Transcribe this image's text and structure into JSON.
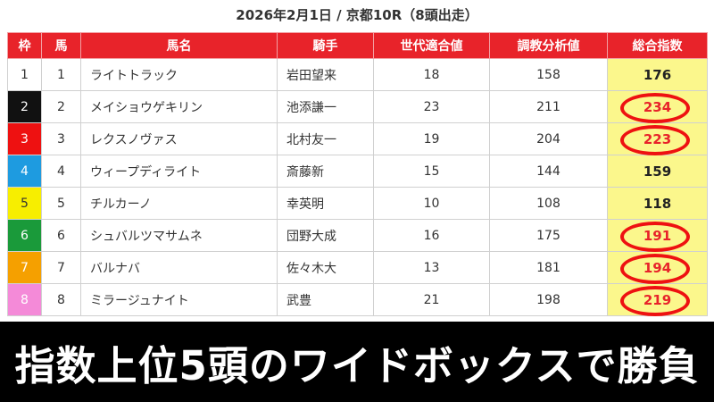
{
  "title": "2026年2月1日 / 京都10R（8頭出走）",
  "headers": [
    "枠",
    "馬",
    "馬名",
    "騎手",
    "世代適合値",
    "調教分析値",
    "総合指数"
  ],
  "rows": [
    {
      "waku": "1",
      "uma": "1",
      "name": "ライトトラック",
      "jockey": "岩田望来",
      "gen": "18",
      "train": "158",
      "score": "176",
      "circled": false,
      "waku_bg": "#ffffff",
      "waku_fg": "#333333"
    },
    {
      "waku": "2",
      "uma": "2",
      "name": "メイショウゲキリン",
      "jockey": "池添謙一",
      "gen": "23",
      "train": "211",
      "score": "234",
      "circled": true,
      "waku_bg": "#111111",
      "waku_fg": "#ffffff"
    },
    {
      "waku": "3",
      "uma": "3",
      "name": "レクスノヴァス",
      "jockey": "北村友一",
      "gen": "19",
      "train": "204",
      "score": "223",
      "circled": true,
      "waku_bg": "#ee1111",
      "waku_fg": "#ffffff"
    },
    {
      "waku": "4",
      "uma": "4",
      "name": "ウィープディライト",
      "jockey": "斎藤新",
      "gen": "15",
      "train": "144",
      "score": "159",
      "circled": false,
      "waku_bg": "#1e9be0",
      "waku_fg": "#ffffff"
    },
    {
      "waku": "5",
      "uma": "5",
      "name": "チルカーノ",
      "jockey": "幸英明",
      "gen": "10",
      "train": "108",
      "score": "118",
      "circled": false,
      "waku_bg": "#f7ee00",
      "waku_fg": "#333333"
    },
    {
      "waku": "6",
      "uma": "6",
      "name": "シュバルツマサムネ",
      "jockey": "団野大成",
      "gen": "16",
      "train": "175",
      "score": "191",
      "circled": true,
      "waku_bg": "#1a9a3a",
      "waku_fg": "#ffffff"
    },
    {
      "waku": "7",
      "uma": "7",
      "name": "バルナバ",
      "jockey": "佐々木大",
      "gen": "13",
      "train": "181",
      "score": "194",
      "circled": true,
      "waku_bg": "#f5a000",
      "waku_fg": "#ffffff"
    },
    {
      "waku": "8",
      "uma": "8",
      "name": "ミラージュナイト",
      "jockey": "武豊",
      "gen": "21",
      "train": "198",
      "score": "219",
      "circled": true,
      "waku_bg": "#f48ad8",
      "waku_fg": "#ffffff"
    }
  ],
  "banner": "指数上位5頭のワイドボックスで勝負",
  "colors": {
    "header": "#e8232a",
    "score_bg": "#fbf78c",
    "highlight": "#e8232a",
    "ring": "#ee1111"
  }
}
